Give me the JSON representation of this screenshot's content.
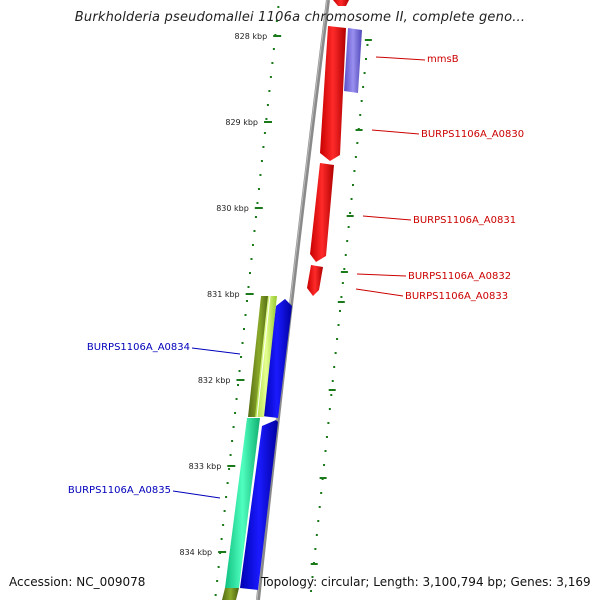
{
  "title": "Burkholderia pseudomallei 1106a chromosome II, complete geno...",
  "footer": {
    "accession": "Accession: NC_009078",
    "stats": "Topology: circular; Length: 3,100,794 bp; Genes: 3,169"
  },
  "ticks": [
    "828 kbp",
    "829 kbp",
    "830 kbp",
    "831 kbp",
    "832 kbp",
    "833 kbp",
    "834 kbp"
  ],
  "genes": [
    {
      "label": "mmsB",
      "color": "#cc0000"
    },
    {
      "label": "BURPS1106A_A0830",
      "color": "#cc0000"
    },
    {
      "label": "BURPS1106A_A0831",
      "color": "#cc0000"
    },
    {
      "label": "BURPS1106A_A0832",
      "color": "#cc0000"
    },
    {
      "label": "BURPS1106A_A0833",
      "color": "#cc0000"
    },
    {
      "label": "BURPS1106A_A0834",
      "color": "#0000bb"
    },
    {
      "label": "BURPS1106A_A0835",
      "color": "#0000bb"
    }
  ],
  "colors": {
    "forward_strand": "#ff0000",
    "forward_alt": "#7a6ee0",
    "reverse_strand": "#0000ee",
    "olive_track": "#6f8f1f",
    "lime_track": "#c8f060",
    "teal_track": "#20e8a0",
    "backbone": "#888888",
    "tick": "#1a7a1a"
  }
}
